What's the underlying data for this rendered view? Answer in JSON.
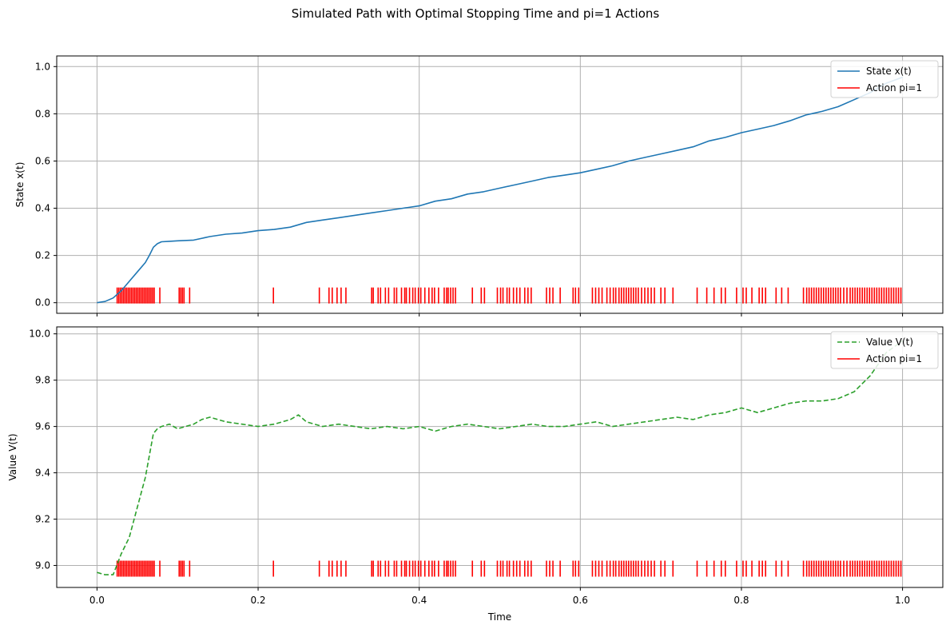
{
  "figure": {
    "suptitle": "Simulated Path with Optimal Stopping Time and pi=1 Actions"
  },
  "colors": {
    "state": "#1f77b4",
    "value": "#2ca02c",
    "action": "#ff0000",
    "grid": "#b0b0b0",
    "axes": "#000000"
  },
  "chart_data": [
    {
      "type": "line",
      "title": "",
      "xlabel": "",
      "ylabel": "State x(t)",
      "xlim": [
        -0.05,
        1.05
      ],
      "ylim": [
        -0.045,
        1.045
      ],
      "xticks": [
        0.0,
        0.2,
        0.4,
        0.6,
        0.8,
        1.0
      ],
      "xtick_labels_visible": false,
      "yticks": [
        0.0,
        0.2,
        0.4,
        0.6,
        0.8,
        1.0
      ],
      "ytick_labels": [
        "0.0",
        "0.2",
        "0.4",
        "0.6",
        "0.8",
        "1.0"
      ],
      "grid": true,
      "legend": "top-right",
      "series": [
        {
          "name": "State x(t)",
          "style": "solid",
          "color": "#1f77b4",
          "x": [
            0.0,
            0.01,
            0.02,
            0.03,
            0.04,
            0.05,
            0.06,
            0.065,
            0.07,
            0.075,
            0.08,
            0.09,
            0.1,
            0.12,
            0.14,
            0.16,
            0.18,
            0.2,
            0.22,
            0.24,
            0.26,
            0.28,
            0.3,
            0.32,
            0.34,
            0.36,
            0.38,
            0.4,
            0.42,
            0.44,
            0.46,
            0.48,
            0.5,
            0.52,
            0.54,
            0.56,
            0.58,
            0.6,
            0.62,
            0.64,
            0.66,
            0.68,
            0.7,
            0.72,
            0.74,
            0.76,
            0.78,
            0.8,
            0.82,
            0.84,
            0.86,
            0.88,
            0.9,
            0.92,
            0.94,
            0.96,
            0.98,
            1.0
          ],
          "y": [
            0.0,
            0.005,
            0.02,
            0.05,
            0.09,
            0.13,
            0.17,
            0.2,
            0.235,
            0.25,
            0.258,
            0.26,
            0.262,
            0.265,
            0.28,
            0.29,
            0.295,
            0.305,
            0.31,
            0.32,
            0.34,
            0.35,
            0.36,
            0.37,
            0.38,
            0.39,
            0.4,
            0.41,
            0.43,
            0.44,
            0.46,
            0.47,
            0.485,
            0.5,
            0.515,
            0.53,
            0.54,
            0.55,
            0.565,
            0.58,
            0.6,
            0.615,
            0.63,
            0.645,
            0.66,
            0.685,
            0.7,
            0.72,
            0.735,
            0.75,
            0.77,
            0.795,
            0.81,
            0.83,
            0.86,
            0.89,
            0.93,
            0.955
          ]
        },
        {
          "name": "Action pi=1",
          "style": "event-ticks",
          "color": "#ff0000",
          "baseline": 0.0,
          "height": 0.0
        }
      ]
    },
    {
      "type": "line",
      "title": "",
      "xlabel": "Time",
      "ylabel": "Value V(t)",
      "xlim": [
        -0.05,
        1.05
      ],
      "ylim": [
        8.905,
        10.03
      ],
      "xticks": [
        0.0,
        0.2,
        0.4,
        0.6,
        0.8,
        1.0
      ],
      "xtick_labels": [
        "0.0",
        "0.2",
        "0.4",
        "0.6",
        "0.8",
        "1.0"
      ],
      "yticks": [
        9.0,
        9.2,
        9.4,
        9.6,
        9.8,
        10.0
      ],
      "ytick_labels": [
        "9.0",
        "9.2",
        "9.4",
        "9.6",
        "9.8",
        "10.0"
      ],
      "grid": true,
      "legend": "top-right",
      "series": [
        {
          "name": "Value V(t)",
          "style": "dashed",
          "color": "#2ca02c",
          "x": [
            0.0,
            0.01,
            0.02,
            0.03,
            0.04,
            0.05,
            0.06,
            0.07,
            0.075,
            0.08,
            0.09,
            0.1,
            0.11,
            0.12,
            0.13,
            0.14,
            0.16,
            0.18,
            0.2,
            0.22,
            0.24,
            0.25,
            0.26,
            0.28,
            0.3,
            0.32,
            0.34,
            0.36,
            0.38,
            0.4,
            0.42,
            0.44,
            0.46,
            0.48,
            0.5,
            0.52,
            0.54,
            0.56,
            0.58,
            0.6,
            0.62,
            0.64,
            0.66,
            0.68,
            0.7,
            0.72,
            0.74,
            0.76,
            0.78,
            0.8,
            0.82,
            0.84,
            0.86,
            0.88,
            0.9,
            0.92,
            0.94,
            0.96,
            0.98,
            1.0
          ],
          "y": [
            8.97,
            8.96,
            8.96,
            9.05,
            9.12,
            9.25,
            9.38,
            9.57,
            9.59,
            9.6,
            9.61,
            9.59,
            9.6,
            9.61,
            9.63,
            9.64,
            9.62,
            9.61,
            9.6,
            9.61,
            9.63,
            9.65,
            9.62,
            9.6,
            9.61,
            9.6,
            9.59,
            9.6,
            9.59,
            9.6,
            9.58,
            9.6,
            9.61,
            9.6,
            9.59,
            9.6,
            9.61,
            9.6,
            9.6,
            9.61,
            9.62,
            9.6,
            9.61,
            9.62,
            9.63,
            9.64,
            9.63,
            9.65,
            9.66,
            9.68,
            9.66,
            9.68,
            9.7,
            9.71,
            9.71,
            9.72,
            9.75,
            9.82,
            9.92,
            9.97
          ]
        },
        {
          "name": "Action pi=1",
          "style": "event-ticks",
          "color": "#ff0000",
          "baseline": 8.955,
          "height": 8.955
        }
      ]
    }
  ],
  "action_times": [
    0.025,
    0.027,
    0.029,
    0.031,
    0.033,
    0.035,
    0.037,
    0.039,
    0.041,
    0.043,
    0.045,
    0.047,
    0.049,
    0.051,
    0.053,
    0.055,
    0.057,
    0.059,
    0.061,
    0.063,
    0.065,
    0.067,
    0.069,
    0.071,
    0.078,
    0.102,
    0.104,
    0.106,
    0.108,
    0.115,
    0.219,
    0.276,
    0.288,
    0.292,
    0.298,
    0.303,
    0.309,
    0.341,
    0.343,
    0.349,
    0.352,
    0.358,
    0.362,
    0.369,
    0.372,
    0.378,
    0.382,
    0.384,
    0.388,
    0.392,
    0.395,
    0.399,
    0.402,
    0.407,
    0.412,
    0.416,
    0.419,
    0.424,
    0.431,
    0.434,
    0.436,
    0.439,
    0.442,
    0.445,
    0.466,
    0.477,
    0.481,
    0.497,
    0.501,
    0.504,
    0.509,
    0.512,
    0.517,
    0.521,
    0.525,
    0.531,
    0.535,
    0.539,
    0.558,
    0.562,
    0.566,
    0.575,
    0.591,
    0.594,
    0.598,
    0.615,
    0.619,
    0.623,
    0.627,
    0.633,
    0.637,
    0.641,
    0.644,
    0.648,
    0.651,
    0.654,
    0.657,
    0.66,
    0.663,
    0.666,
    0.669,
    0.672,
    0.676,
    0.68,
    0.684,
    0.688,
    0.692,
    0.7,
    0.705,
    0.715,
    0.745,
    0.757,
    0.766,
    0.775,
    0.78,
    0.794,
    0.802,
    0.806,
    0.813,
    0.822,
    0.826,
    0.83,
    0.843,
    0.85,
    0.858,
    0.877,
    0.881,
    0.884,
    0.887,
    0.89,
    0.893,
    0.896,
    0.899,
    0.902,
    0.905,
    0.908,
    0.911,
    0.914,
    0.917,
    0.92,
    0.923,
    0.927,
    0.931,
    0.935,
    0.938,
    0.941,
    0.944,
    0.947,
    0.95,
    0.953,
    0.956,
    0.959,
    0.962,
    0.965,
    0.968,
    0.971,
    0.974,
    0.977,
    0.98,
    0.983,
    0.986,
    0.989,
    0.992,
    0.995,
    0.998
  ]
}
